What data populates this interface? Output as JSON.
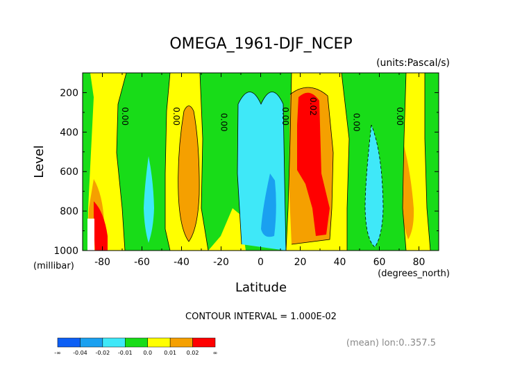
{
  "chart_data": {
    "type": "heatmap",
    "title": "OMEGA_1961-DJF_NCEP",
    "units_label": "(units:Pascal/s)",
    "xlabel": "Latitude",
    "xunit_label": "(degrees_north)",
    "ylabel": "Level",
    "yunit_label": "(millibar)",
    "xlim": [
      -90,
      90
    ],
    "ylim": [
      1000,
      100
    ],
    "y_axis_inverted": true,
    "x_ticks": [
      -80,
      -60,
      -40,
      -20,
      0,
      20,
      40,
      60,
      80
    ],
    "x_tick_labels": [
      "-80",
      "-60",
      "-40",
      "-20",
      "0",
      "20",
      "40",
      "60",
      "80"
    ],
    "y_ticks": [
      200,
      400,
      600,
      800,
      1000
    ],
    "y_tick_labels": [
      "200",
      "400",
      "600",
      "800",
      "1000"
    ],
    "contour_interval_text": "CONTOUR INTERVAL = 1.000E-02",
    "mean_text": "(mean) lon:0..357.5",
    "contour_labels": [
      {
        "text": "0.00",
        "lat": -70,
        "level": 320
      },
      {
        "text": "0.00",
        "lat": -44,
        "level": 320
      },
      {
        "text": "0.00",
        "lat": -20,
        "level": 350
      },
      {
        "text": "0.00",
        "lat": 11,
        "level": 320
      },
      {
        "text": "0.02",
        "lat": 25,
        "level": 270
      },
      {
        "text": "0.00",
        "lat": 47,
        "level": 350
      },
      {
        "text": "0.00",
        "lat": 69,
        "level": 320
      }
    ],
    "colorbar": {
      "colors": [
        "#0d5ff5",
        "#1aa0f0",
        "#3fe8f8",
        "#18dc18",
        "#ffff00",
        "#f5a000",
        "#ff0000"
      ],
      "tick_labels": [
        "-∞",
        "-0.04",
        "-0.02",
        "-0.01",
        "0.0",
        "0.01",
        "0.02",
        "∞"
      ]
    },
    "regions": [
      {
        "category": "negative_ge_-0.01",
        "color": "#3fe8f8",
        "lat_range": [
          -13,
          8
        ],
        "level_range": [
          230,
          920
        ]
      },
      {
        "category": "negative_-0.02",
        "color": "#1aa0f0",
        "lat_range": [
          -1,
          5
        ],
        "level_range": [
          700,
          900
        ]
      },
      {
        "category": "negative_-0.01",
        "color": "#3fe8f8",
        "lat_range": [
          -59,
          -53
        ],
        "level_range": [
          470,
          850
        ]
      },
      {
        "category": "negative_-0.01",
        "color": "#3fe8f8",
        "lat_range": [
          52,
          61
        ],
        "level_range": [
          330,
          960
        ]
      },
      {
        "category": "positive_0.01",
        "color": "#f5a000",
        "lat_range": [
          -44,
          -32
        ],
        "level_range": [
          270,
          930
        ]
      },
      {
        "category": "positive_0.01",
        "color": "#f5a000",
        "lat_range": [
          12,
          36
        ],
        "level_range": [
          170,
          960
        ]
      },
      {
        "category": "positive_0.02",
        "color": "#ff0000",
        "lat_range": [
          18,
          31
        ],
        "level_range": [
          220,
          930
        ]
      },
      {
        "category": "positive_0.02",
        "color": "#ff0000",
        "lat_range": [
          -88,
          -80
        ],
        "level_range": [
          800,
          1000
        ]
      }
    ]
  }
}
